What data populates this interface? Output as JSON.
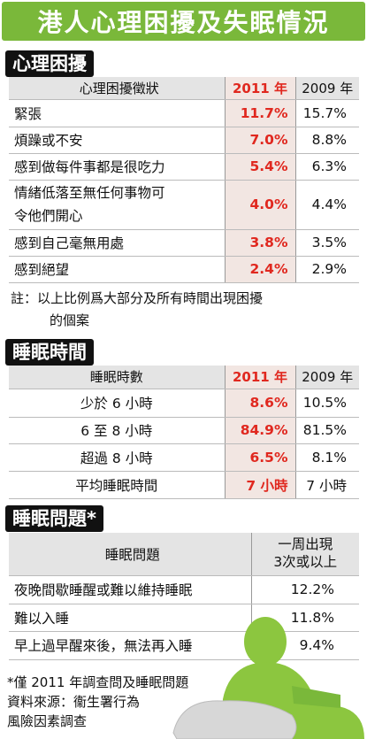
{
  "title": "港人心理困擾及失眠情況",
  "section1": {
    "label": "心理困擾",
    "header": {
      "col1": "心理困擾徵狀",
      "col2": "2011 年",
      "col3": "2009 年"
    },
    "rows": [
      {
        "label": "緊張",
        "v2011": "11.7%",
        "v2009": "15.7%"
      },
      {
        "label": "煩躁或不安",
        "v2011": "7.0%",
        "v2009": "8.8%"
      },
      {
        "label": "感到做每件事都是很吃力",
        "v2011": "5.4%",
        "v2009": "6.3%"
      },
      {
        "label1": "情緒低落至無任何事物可",
        "label2": "令他們開心",
        "v2011": "4.0%",
        "v2009": "4.4%"
      },
      {
        "label": "感到自己毫無用處",
        "v2011": "3.8%",
        "v2009": "3.5%"
      },
      {
        "label": "感到絕望",
        "v2011": "2.4%",
        "v2009": "2.9%"
      }
    ],
    "note1": "註：以上比例爲大部分及所有時間出現困擾",
    "note2": "的個案"
  },
  "section2": {
    "label": "睡眠時間",
    "header": {
      "col1": "睡眠時數",
      "col2": "2011 年",
      "col3": "2009 年"
    },
    "rows": [
      {
        "label": "少於 6 小時",
        "v2011": "8.6%",
        "v2009": "10.5%"
      },
      {
        "label": "6 至 8 小時",
        "v2011": "84.9%",
        "v2009": "81.5%"
      },
      {
        "label": "超過 8 小時",
        "v2011": "6.5%",
        "v2009": "8.1%"
      },
      {
        "label": "平均睡眠時間",
        "v2011": "7 小時",
        "v2009": "7 小時"
      }
    ]
  },
  "section3": {
    "label": "睡眠問題*",
    "header": {
      "col1": "睡眠問題",
      "col2a": "一周出現",
      "col2b": "3次或以上"
    },
    "rows": [
      {
        "label": "夜晚間歇睡醒或難以維持睡眠",
        "value": "12.2%"
      },
      {
        "label": "難以入睡",
        "value": "11.8%"
      },
      {
        "label": "早上過早醒來後，無法再入睡",
        "value": "9.4%"
      }
    ]
  },
  "footnote": "*僅 2011 年調查問及睡眠問題",
  "source1": "資料來源：衞生署行為",
  "source2": "風險因素調查",
  "colors": {
    "title_bg": "#7ab83a",
    "highlight": "#e0281f",
    "highlight_bg": "#f2e6e2",
    "figure": "#8cc63f"
  }
}
